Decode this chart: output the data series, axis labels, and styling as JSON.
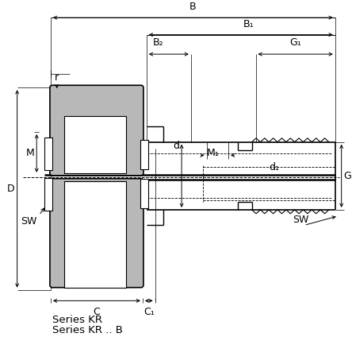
{
  "series_labels": [
    "Series KR",
    "Series KR .. B"
  ],
  "dimension_labels": {
    "B": "B",
    "B1": "B₁",
    "B2": "B₂",
    "G1": "G₁",
    "C": "C",
    "C1": "C₁",
    "r": "r",
    "M": "M",
    "D": "D",
    "G": "G",
    "d": "d",
    "d1": "d₁",
    "M1": "M₁",
    "SW": "SW"
  },
  "colors": {
    "gray": "#b8b8b8",
    "white": "#ffffff",
    "black": "#000000"
  },
  "fig_width": 4.44,
  "fig_height": 4.24,
  "dpi": 100
}
